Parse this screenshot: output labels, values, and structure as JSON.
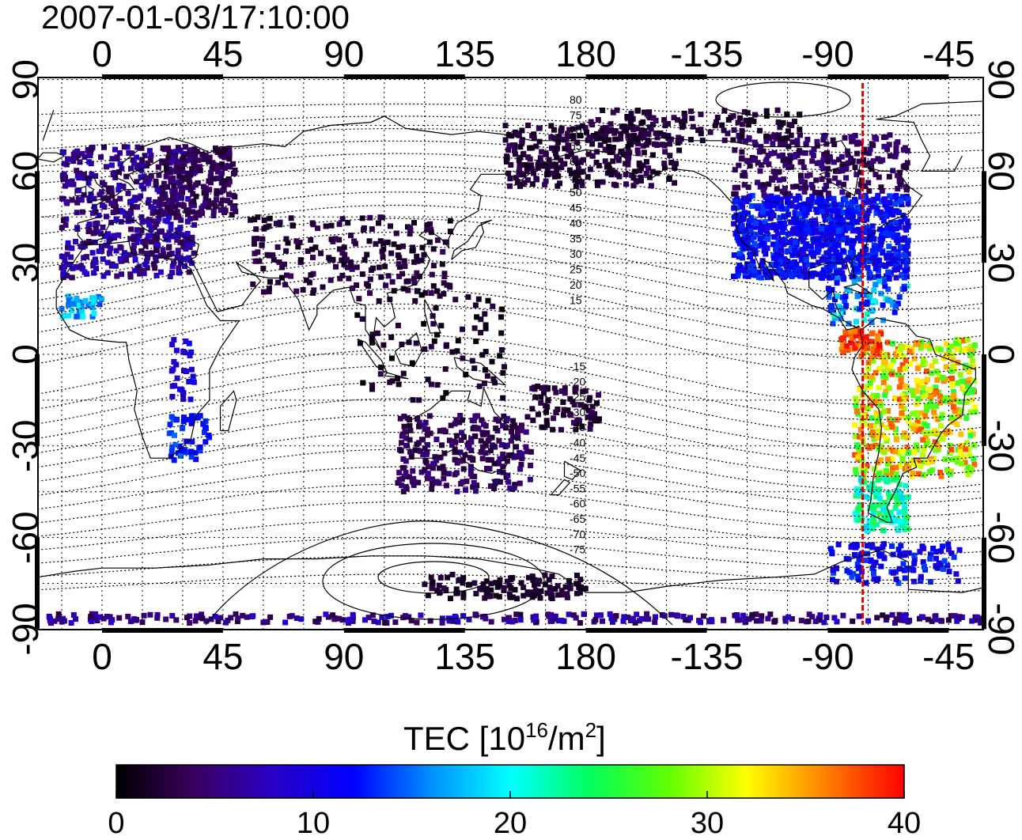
{
  "timestamp": "2007-01-03/17:10:00",
  "map": {
    "top_lon_labels": [
      "0",
      "45",
      "90",
      "135",
      "180",
      "-135",
      "-90",
      "-45"
    ],
    "bottom_lon_labels": [
      "0",
      "45",
      "90",
      "135",
      "180",
      "-135",
      "-90",
      "-45"
    ],
    "left_lat_labels": [
      "90",
      "60",
      "30",
      "0",
      "-30",
      "-60",
      "-90"
    ],
    "right_lat_labels": [
      "90",
      "60",
      "30",
      "0",
      "-30",
      "-60",
      "-90"
    ],
    "north_contour_labels": [
      "80",
      "75",
      "70",
      "65",
      "60",
      "55",
      "50",
      "45",
      "40",
      "35",
      "30",
      "25",
      "20",
      "15"
    ],
    "south_contour_labels": [
      "-15",
      "-20",
      "-25",
      "-30",
      "-35",
      "-40",
      "-45",
      "-50",
      "-55",
      "-60",
      "-65",
      "-70",
      "-75"
    ],
    "meridian_line_color": "#e00000"
  },
  "colorbar": {
    "title_prefix": "TEC  [10",
    "title_exp": "16",
    "title_mid": "/m",
    "title_exp2": "2",
    "title_suffix": "]",
    "tick_labels": [
      "0",
      "10",
      "20",
      "30",
      "40"
    ],
    "min": 0,
    "max": 40,
    "colormap": [
      "#000000",
      "#3a0060",
      "#2a00c8",
      "#0000ff",
      "#0090ff",
      "#00ffff",
      "#00ff60",
      "#60ff00",
      "#ffff00",
      "#ff8000",
      "#ff0000"
    ]
  }
}
